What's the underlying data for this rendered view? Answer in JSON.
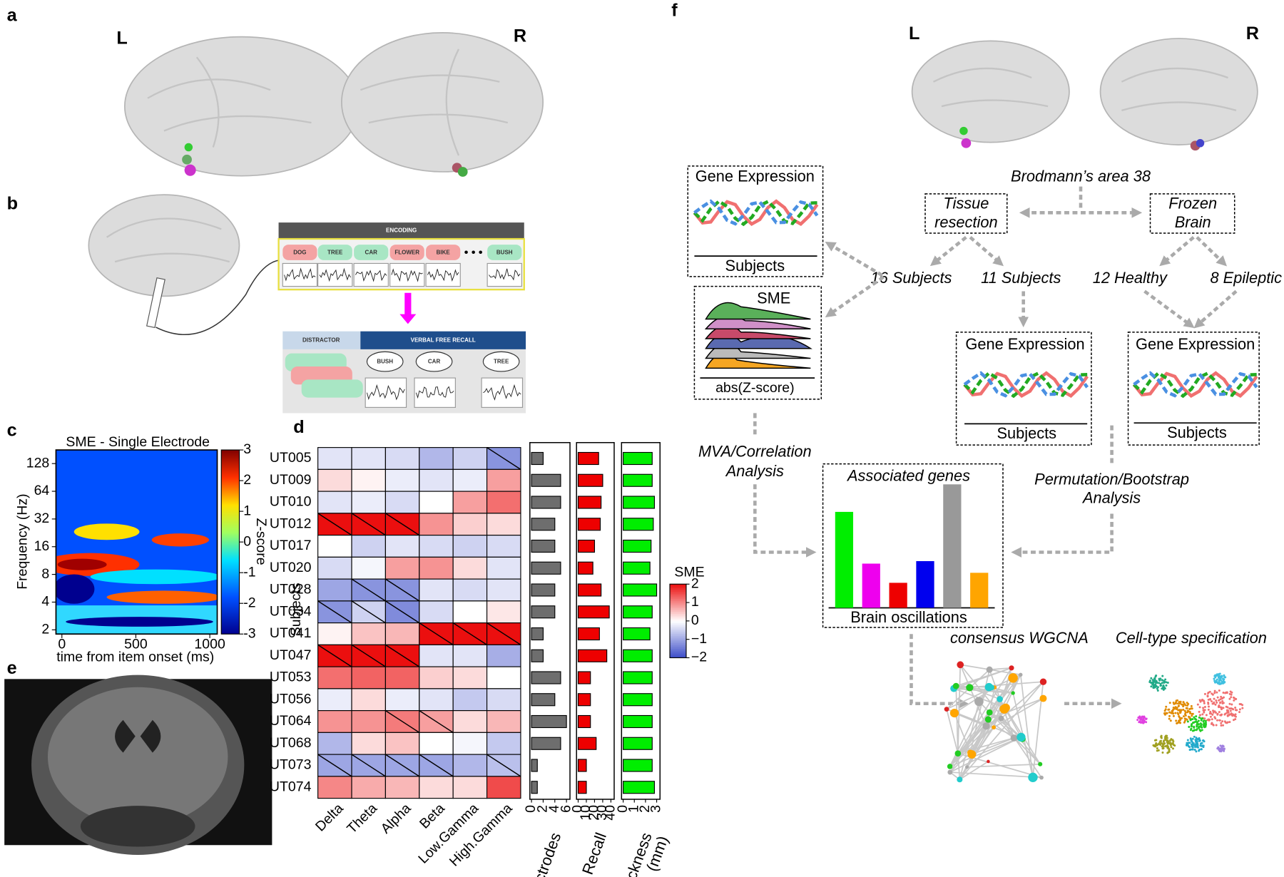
{
  "labels": {
    "a": "a",
    "b": "b",
    "c": "c",
    "d": "d",
    "e": "e",
    "f": "f"
  },
  "hemispheres": {
    "left": "L",
    "right": "R"
  },
  "task": {
    "encoding": "ENCODING",
    "words": [
      "DOG",
      "TREE",
      "CAR",
      "FLOWER",
      "BIKE",
      "BUSH"
    ],
    "distractor": "DISTRACTOR",
    "recall": "VERBAL FREE RECALL",
    "recalled": [
      "BUSH",
      "CAR",
      "TREE"
    ]
  },
  "flow": {
    "gene_expression": "Gene Expression",
    "subjects": "Subjects",
    "sme": "SME",
    "abs_z": "abs(Z-score)",
    "brodmann": "Brodmann’s area 38",
    "tissue": [
      "Tissue",
      "resection"
    ],
    "frozen": [
      "Frozen",
      "Brain"
    ],
    "n16": "16 Subjects",
    "n11": "11 Subjects",
    "healthy": "12 Healthy",
    "epileptic": "8 Epileptic",
    "mva": [
      "MVA/Correlation",
      "Analysis"
    ],
    "perm": [
      "Permutation/Bootstrap",
      "Analysis"
    ],
    "wgcna": "consensus WGCNA",
    "celltype": "Cell-type specification"
  },
  "chart_data": [
    {
      "type": "spectrogram",
      "title": "SME - Single Electrode",
      "xlabel": "time from item onset (ms)",
      "ylabel": "Frequency (Hz)",
      "xlim": [
        -40,
        1050
      ],
      "xticks": [
        0,
        500,
        1000
      ],
      "ylim": [
        1.8,
        180
      ],
      "yticks": [
        2,
        4,
        8,
        16,
        32,
        64,
        128
      ],
      "log_y": true,
      "colorbar": {
        "label": "Z-score",
        "lim": [
          -3,
          3
        ],
        "ticks": [
          -3,
          -2,
          -1,
          0,
          1,
          2,
          3
        ]
      }
    },
    {
      "type": "heatmap",
      "ylabel": "Subjects",
      "categories": [
        "UT005",
        "UT009",
        "UT010",
        "UT012",
        "UT017",
        "UT020",
        "UT028",
        "UT034",
        "UT041",
        "UT047",
        "UT053",
        "UT056",
        "UT064",
        "UT068",
        "UT073",
        "UT074"
      ],
      "columns": [
        "Delta",
        "Theta",
        "Alpha",
        "Beta",
        "Low.Gamma",
        "High.Gamma"
      ],
      "values": [
        [
          -0.3,
          -0.3,
          -0.4,
          -0.8,
          -0.5,
          -1.2
        ],
        [
          0.3,
          0.1,
          -0.2,
          -0.3,
          -0.2,
          0.8
        ],
        [
          -0.3,
          -0.2,
          -0.4,
          0,
          0.8,
          1.2
        ],
        [
          2,
          2,
          2,
          0.9,
          0.4,
          0.3
        ],
        [
          0,
          -0.5,
          -0.3,
          -0.4,
          -0.5,
          -0.4
        ],
        [
          -0.4,
          -0.1,
          0.8,
          0.9,
          0.3,
          -0.3
        ],
        [
          -1,
          -1.2,
          -1.2,
          -0.3,
          -0.4,
          -0.3
        ],
        [
          -1.2,
          -0.5,
          -1.3,
          -0.4,
          0,
          0.2
        ],
        [
          0.1,
          0.5,
          0.6,
          2,
          2,
          2
        ],
        [
          2,
          2,
          2,
          -0.3,
          -0.3,
          -0.9
        ],
        [
          1.2,
          1.3,
          1.3,
          0.4,
          0.3,
          0
        ],
        [
          -0.2,
          0.3,
          -0.2,
          -0.3,
          -0.6,
          -0.4
        ],
        [
          0.9,
          0.9,
          1.1,
          0.8,
          0.3,
          0.6
        ],
        [
          -0.8,
          0.3,
          0.5,
          0,
          -0.1,
          -0.6
        ],
        [
          -1,
          -1,
          -1,
          -1,
          -0.8,
          -0.7
        ],
        [
          1,
          0.7,
          0.6,
          0.3,
          0.3,
          1.5
        ]
      ],
      "significant": [
        [
          0,
          5
        ],
        [
          3,
          0
        ],
        [
          3,
          1
        ],
        [
          3,
          2
        ],
        [
          6,
          1
        ],
        [
          6,
          2
        ],
        [
          7,
          0
        ],
        [
          7,
          1
        ],
        [
          7,
          2
        ],
        [
          8,
          3
        ],
        [
          8,
          4
        ],
        [
          8,
          5
        ],
        [
          9,
          0
        ],
        [
          9,
          1
        ],
        [
          9,
          2
        ],
        [
          12,
          2
        ],
        [
          12,
          3
        ],
        [
          14,
          0
        ],
        [
          14,
          1
        ],
        [
          14,
          2
        ],
        [
          14,
          3
        ],
        [
          14,
          5
        ]
      ],
      "colorbar": {
        "label": "SME",
        "lim": [
          -2,
          2
        ],
        "ticks": [
          {
            "value": -2,
            "label": "−2"
          },
          {
            "value": -1,
            "label": "−1"
          },
          0,
          1,
          2
        ]
      }
    },
    {
      "type": "hbar",
      "xlabel": "Electrodes",
      "color": "#6e6e6e",
      "values": [
        2,
        5,
        5,
        4,
        4,
        5,
        4,
        4,
        2,
        2,
        5,
        4,
        6,
        5,
        1,
        1
      ],
      "xlim": [
        0,
        6.6
      ],
      "xticks": [
        0,
        2,
        4,
        6
      ]
    },
    {
      "type": "hbar",
      "xlabel": "% Recall",
      "color": "#ee0000",
      "values": [
        25,
        30,
        28,
        27,
        20,
        18,
        28,
        38,
        26,
        35,
        15,
        15,
        15,
        22,
        10,
        10
      ],
      "xlim": [
        0,
        44
      ],
      "xticks": [
        0,
        10,
        20,
        30,
        40
      ]
    },
    {
      "type": "hbar",
      "xlabel": [
        "Thickness",
        "(mm)"
      ],
      "color": "#00ee00",
      "values": [
        2.6,
        2.6,
        2.8,
        2.7,
        2.5,
        2.4,
        3,
        2.6,
        2.4,
        2.6,
        2.6,
        2.6,
        2.6,
        2.6,
        2.6,
        2.8
      ],
      "xlim": [
        0,
        3.3
      ],
      "xticks": [
        0,
        1,
        2,
        3
      ]
    },
    {
      "type": "bar",
      "title": "Associated genes",
      "xlabel": "Brain oscillations",
      "values": [
        115,
        53,
        30,
        56,
        148,
        42
      ],
      "colors": [
        "#00ee00",
        "#ee00ee",
        "#ee0000",
        "#0000ee",
        "#999999",
        "#ffa500"
      ],
      "ylim": [
        0,
        150
      ]
    }
  ]
}
